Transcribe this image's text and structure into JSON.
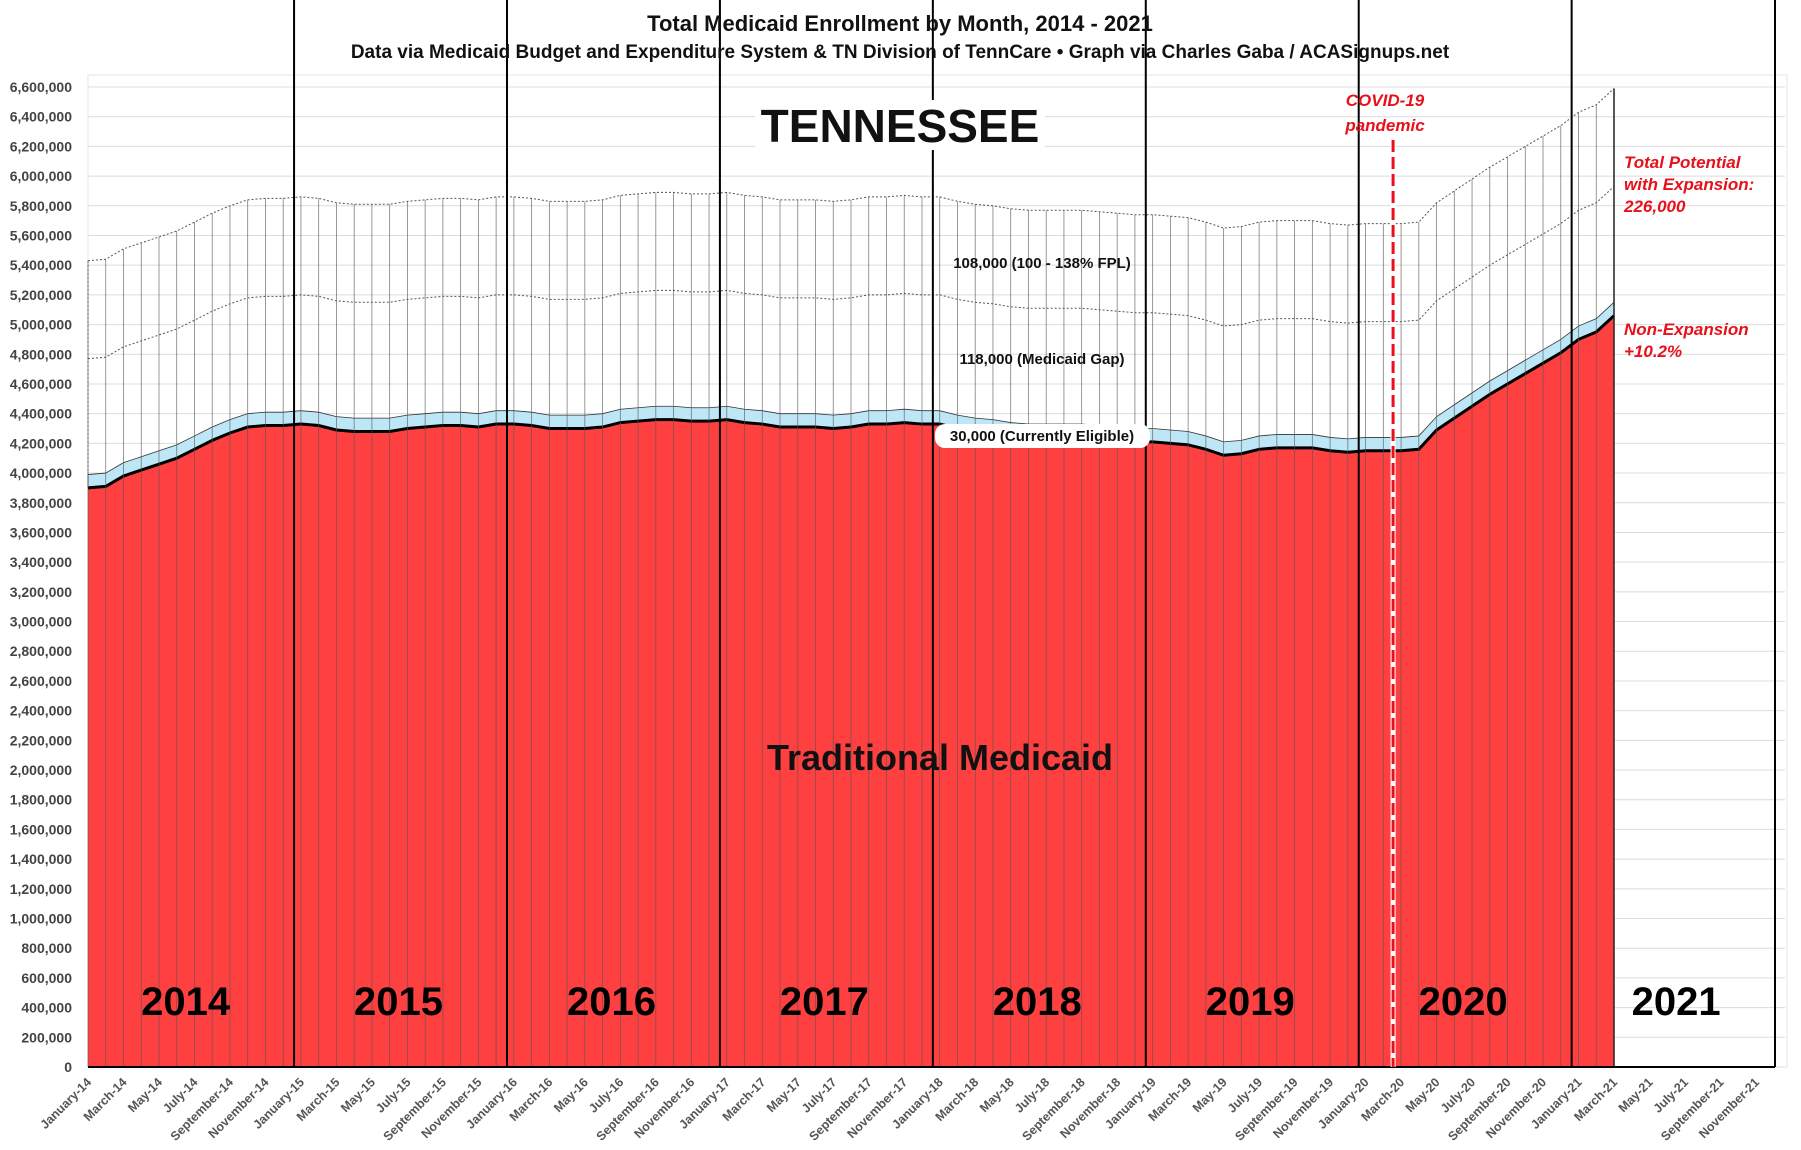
{
  "chart_data": {
    "type": "area",
    "title": "Total Medicaid Enrollment by Month, 2014 - 2021",
    "subtitle": "Data via Medicaid Budget and Expenditure System & TN Division of TennCare  •  Graph via Charles Gaba / ACASignups.net",
    "state_label": "TENNESSEE",
    "xlabel": "",
    "ylabel": "",
    "ylim": [
      0,
      6600000
    ],
    "ytick_step": 200000,
    "grid": true,
    "x_start": "January-14",
    "x_tick_labels": [
      "January-14",
      "March-14",
      "May-14",
      "July-14",
      "September-14",
      "November-14",
      "January-15",
      "March-15",
      "May-15",
      "July-15",
      "September-15",
      "November-15",
      "January-16",
      "March-16",
      "May-16",
      "July-16",
      "September-16",
      "November-16",
      "January-17",
      "March-17",
      "May-17",
      "July-17",
      "September-17",
      "November-17",
      "January-18",
      "March-18",
      "May-18",
      "July-18",
      "September-18",
      "November-18",
      "January-19",
      "March-19",
      "May-19",
      "July-19",
      "September-19",
      "November-19",
      "January-20",
      "March-20",
      "May-20",
      "July-20",
      "September-20",
      "November-20",
      "January-21",
      "March-21",
      "May-21",
      "July-21",
      "September-21",
      "November-21"
    ],
    "total_months": 96,
    "series": [
      {
        "name": "Traditional Medicaid",
        "color": "#ff4040",
        "values": [
          3900000,
          3910000,
          3980000,
          4020000,
          4060000,
          4100000,
          4160000,
          4220000,
          4270000,
          4310000,
          4320000,
          4320000,
          4330000,
          4320000,
          4290000,
          4280000,
          4280000,
          4280000,
          4300000,
          4310000,
          4320000,
          4320000,
          4310000,
          4330000,
          4330000,
          4320000,
          4300000,
          4300000,
          4300000,
          4310000,
          4340000,
          4350000,
          4360000,
          4360000,
          4350000,
          4350000,
          4360000,
          4340000,
          4330000,
          4310000,
          4310000,
          4310000,
          4300000,
          4310000,
          4330000,
          4330000,
          4340000,
          4330000,
          4330000,
          4300000,
          4280000,
          4270000,
          4250000,
          4240000,
          4240000,
          4240000,
          4240000,
          4230000,
          4220000,
          4210000,
          4210000,
          4200000,
          4190000,
          4160000,
          4120000,
          4130000,
          4160000,
          4170000,
          4170000,
          4170000,
          4150000,
          4140000,
          4150000,
          4150000,
          4150000,
          4160000,
          4290000,
          4370000,
          4450000,
          4530000,
          4600000,
          4670000,
          4740000,
          4810000,
          4900000,
          4950000,
          5060000
        ]
      },
      {
        "name": "30,000 (Currently Eligible)",
        "color": "#bde6f6",
        "offset_above_prior": 90000
      },
      {
        "name": "118,000 (Medicaid Gap)",
        "style": "dotted",
        "offset_above_traditional": 870000
      },
      {
        "name": "108,000 (100 - 138% FPL)",
        "style": "dotted",
        "offset_above_traditional": 1530000
      }
    ],
    "year_labels": [
      "2014",
      "2015",
      "2016",
      "2017",
      "2018",
      "2019",
      "2020",
      "2021"
    ],
    "annotations": {
      "traditional": "Traditional Medicaid",
      "fpl": "108,000 (100 - 138% FPL)",
      "gap": "118,000 (Medicaid Gap)",
      "eligible": "30,000 (Currently Eligible)",
      "covid_line1": "COVID-19",
      "covid_line2": "pandemic",
      "covid_month": "March-20",
      "total_line1": "Total Potential",
      "total_line2": "with Expansion:",
      "total_line3": "226,000",
      "nonexp_line1": "Non-Expansion",
      "nonexp_line2": "+10.2%"
    },
    "colors": {
      "traditional": "#ff4040",
      "eligible": "#bde6f6",
      "annotation_red": "#e8101a",
      "year_divider": "#000000"
    }
  }
}
